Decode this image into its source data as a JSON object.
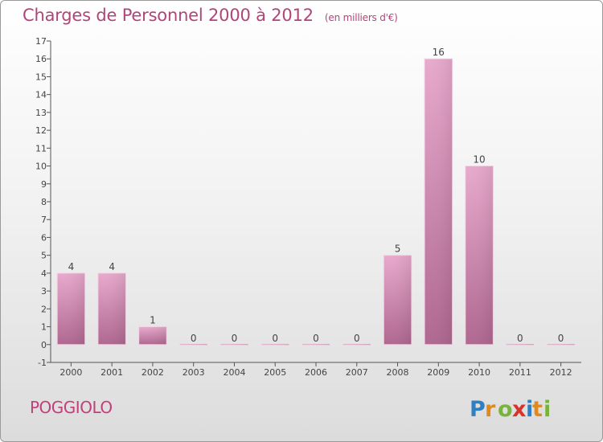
{
  "header": {
    "title": "Charges de Personnel 2000 à 2012",
    "subtitle": "(en milliers d'€)"
  },
  "footer": {
    "commune": "POGGIOLO",
    "logo_text": "Proxiti"
  },
  "colors": {
    "title": "#b0457a",
    "bar_top": "#e8a9cd",
    "bar_bottom": "#b06790",
    "axis": "#555555"
  },
  "chart_data": {
    "type": "bar",
    "title": "Charges de Personnel 2000 à 2012",
    "subtitle": "(en milliers d'€)",
    "xlabel": "",
    "ylabel": "",
    "categories": [
      "2000",
      "2001",
      "2002",
      "2003",
      "2004",
      "2005",
      "2006",
      "2007",
      "2008",
      "2009",
      "2010",
      "2011",
      "2012"
    ],
    "values": [
      4,
      4,
      1,
      0,
      0,
      0,
      0,
      0,
      5,
      16,
      10,
      0,
      0
    ],
    "data_labels": [
      "4",
      "4",
      "1",
      "0",
      "0",
      "0",
      "0",
      "0",
      "5",
      "16",
      "10",
      "0",
      "0"
    ],
    "ylim": [
      -1,
      17
    ],
    "yticks": [
      "-1",
      "0",
      "1",
      "2",
      "3",
      "4",
      "5",
      "6",
      "7",
      "8",
      "9",
      "10",
      "11",
      "12",
      "13",
      "14",
      "15",
      "16",
      "17"
    ],
    "grid": false,
    "legend": "none"
  }
}
